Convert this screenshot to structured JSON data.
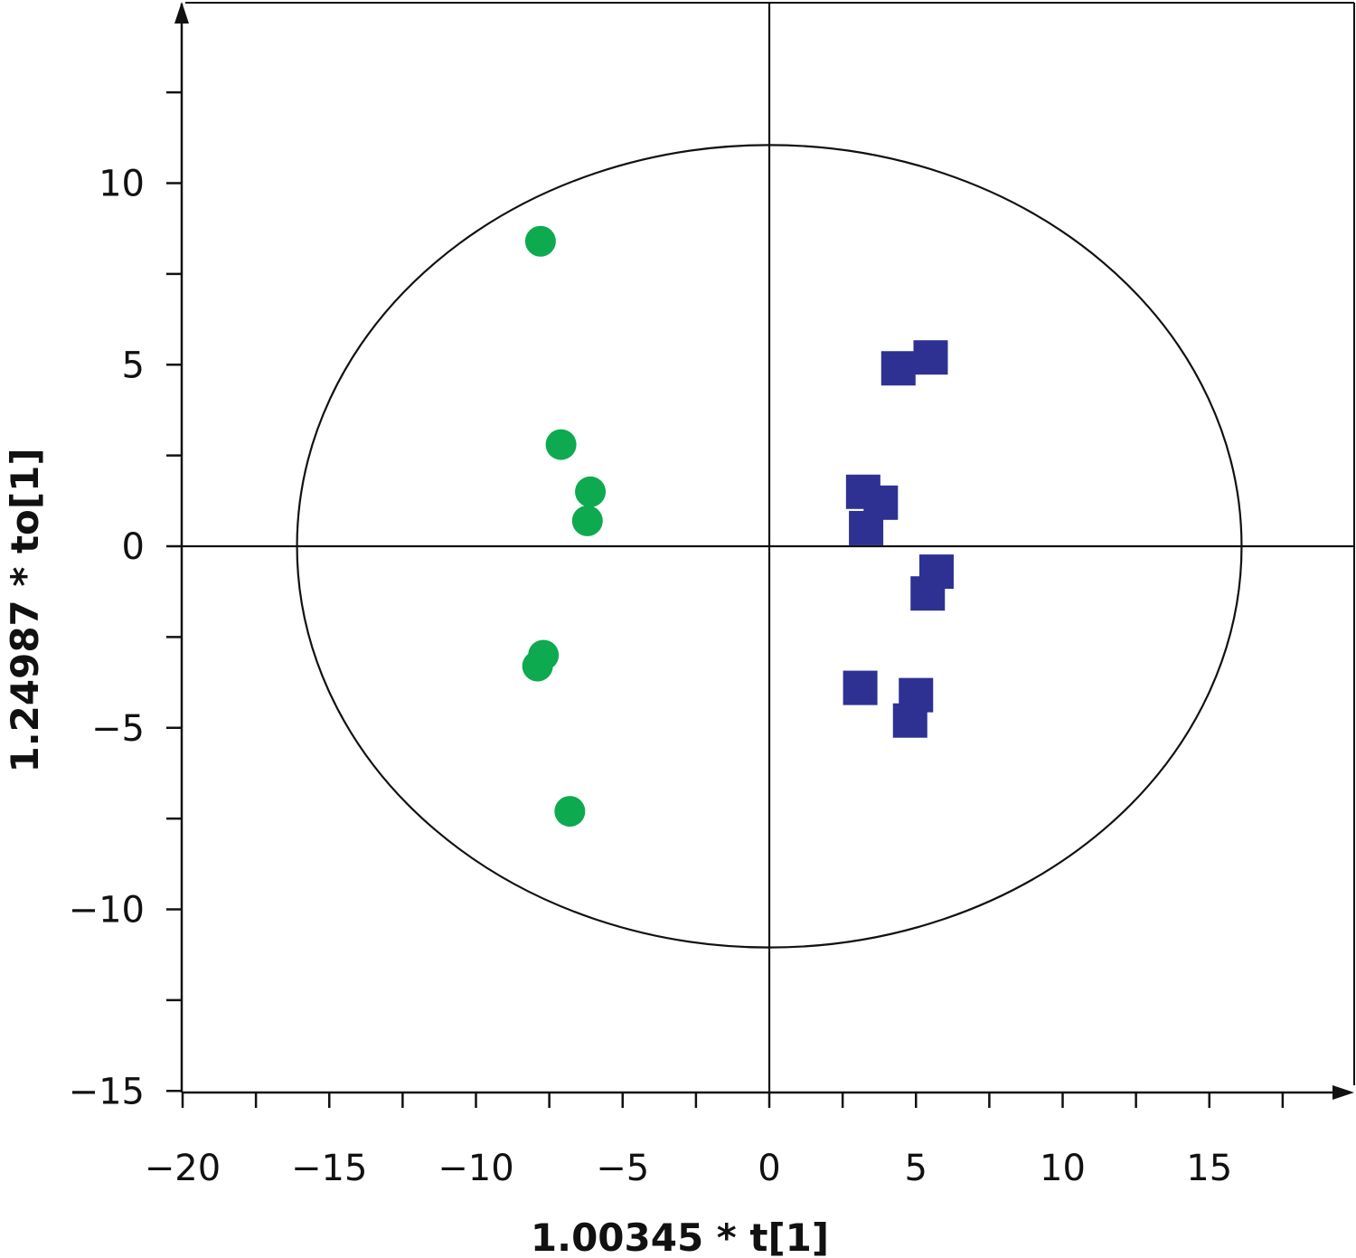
{
  "chart_data": {
    "type": "scatter",
    "title": "",
    "xlabel": "1.00345 * t[1]",
    "ylabel": "1.24987 * to[1]",
    "xlim": [
      -20,
      20
    ],
    "ylim": [
      -15,
      15
    ],
    "x_ticks": [
      -20,
      -15,
      -10,
      -5,
      0,
      5,
      10,
      15
    ],
    "y_ticks": [
      -15,
      -10,
      -5,
      0,
      5,
      10
    ],
    "x_tick_labels": [
      "−20",
      "−15",
      "−10",
      "−5",
      "0",
      "5",
      "10",
      "15"
    ],
    "y_tick_labels": [
      "−15",
      "−10",
      "−5",
      "0",
      "5",
      "10"
    ],
    "x_minor_step": 2.5,
    "y_minor_step": 2.5,
    "grid": false,
    "legend": "none",
    "ellipse": {
      "cx": 0,
      "cy": 0,
      "rx": 16.1,
      "ry": 11.05
    },
    "series": [
      {
        "marker": "circle",
        "color": "#0daa4f",
        "points": [
          {
            "x": -7.8,
            "y": 8.4
          },
          {
            "x": -7.1,
            "y": 2.8
          },
          {
            "x": -6.1,
            "y": 1.5
          },
          {
            "x": -6.2,
            "y": 0.7
          },
          {
            "x": -7.7,
            "y": -3.0
          },
          {
            "x": -7.9,
            "y": -3.3
          },
          {
            "x": -6.8,
            "y": -7.3
          }
        ]
      },
      {
        "marker": "square",
        "color": "#2e3192",
        "points": [
          {
            "x": 4.4,
            "y": 4.9
          },
          {
            "x": 5.5,
            "y": 5.2
          },
          {
            "x": 3.2,
            "y": 1.5
          },
          {
            "x": 3.8,
            "y": 1.2
          },
          {
            "x": 3.3,
            "y": 0.5
          },
          {
            "x": 5.7,
            "y": -0.7
          },
          {
            "x": 5.4,
            "y": -1.3
          },
          {
            "x": 3.1,
            "y": -3.9
          },
          {
            "x": 5.0,
            "y": -4.1
          },
          {
            "x": 4.8,
            "y": -4.8
          }
        ]
      }
    ]
  }
}
